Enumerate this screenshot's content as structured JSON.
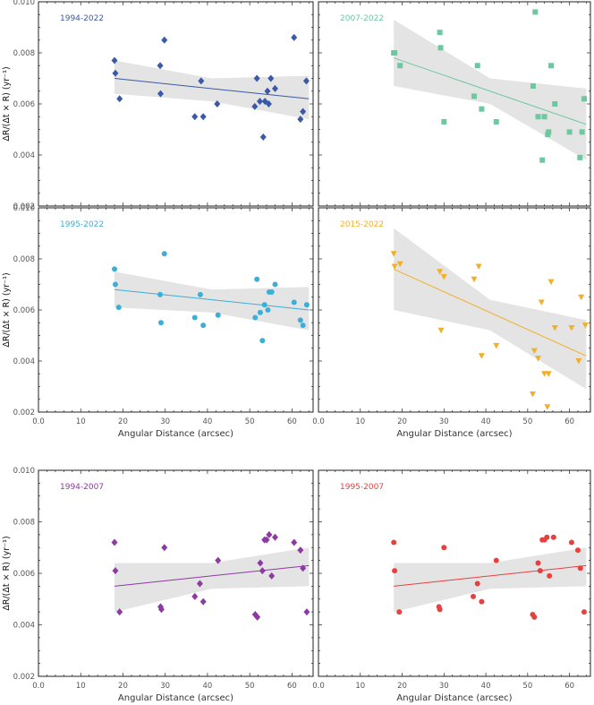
{
  "chart_data": [
    {
      "type": "scatter",
      "title": "1994-2022",
      "color": "#3a5aa5",
      "marker": "diamond",
      "xlabel": "",
      "ylabel": "ΔR/(Δt × R) (yr⁻¹)",
      "xlim": [
        0,
        65
      ],
      "ylim": [
        0.002,
        0.01
      ],
      "xticks": [
        "0.0",
        "10",
        "20",
        "30",
        "40",
        "50",
        "60"
      ],
      "yticks": [
        "0.002",
        "0.004",
        "0.006",
        "0.008",
        "0.010"
      ],
      "x": [
        18.0,
        18.2,
        19.2,
        28.8,
        29.8,
        28.9,
        37.0,
        38.5,
        39.0,
        42.3,
        51.2,
        51.7,
        52.4,
        53.2,
        53.6,
        54.2,
        54.5,
        55.0,
        56.0,
        60.5,
        62.0,
        62.6,
        63.4
      ],
      "y": [
        0.0077,
        0.0072,
        0.0062,
        0.0075,
        0.0085,
        0.0064,
        0.0055,
        0.0069,
        0.0055,
        0.006,
        0.0059,
        0.007,
        0.0061,
        0.0047,
        0.0061,
        0.0065,
        0.006,
        0.007,
        0.0066,
        0.0086,
        0.0054,
        0.0057,
        0.0069
      ],
      "fit": {
        "x": [
          18.0,
          64.0
        ],
        "y": [
          0.007,
          0.0062
        ]
      },
      "band": {
        "x": [
          18.0,
          41.0,
          64.0
        ],
        "upper": [
          0.0077,
          0.007,
          0.0071
        ],
        "lower": [
          0.0064,
          0.0061,
          0.0054
        ]
      }
    },
    {
      "type": "scatter",
      "title": "2007-2022",
      "color": "#6dc8a0",
      "marker": "square",
      "xlabel": "",
      "ylabel": "",
      "xlim": [
        0,
        65
      ],
      "ylim": [
        0.002,
        0.01
      ],
      "xticks": [
        "0.0",
        "10",
        "20",
        "30",
        "40",
        "50",
        "60"
      ],
      "yticks": [
        "0.002",
        "0.004",
        "0.006",
        "0.008",
        "0.010"
      ],
      "x": [
        18.0,
        18.2,
        19.5,
        29.0,
        29.2,
        30.0,
        37.2,
        38.0,
        39.0,
        42.5,
        51.3,
        51.8,
        52.5,
        53.5,
        54.0,
        54.8,
        55.0,
        55.6,
        56.5,
        60.0,
        62.5,
        63.0,
        63.5
      ],
      "y": [
        0.008,
        0.008,
        0.0075,
        0.0088,
        0.0082,
        0.0053,
        0.0063,
        0.0075,
        0.0058,
        0.0053,
        0.0067,
        0.0096,
        0.0055,
        0.0038,
        0.0055,
        0.0048,
        0.0049,
        0.0075,
        0.006,
        0.0049,
        0.0039,
        0.0049,
        0.0062
      ],
      "fit": {
        "x": [
          18.0,
          64.0
        ],
        "y": [
          0.0078,
          0.0052
        ]
      },
      "band": {
        "x": [
          18.0,
          41.0,
          64.0
        ],
        "upper": [
          0.0093,
          0.007,
          0.0066
        ],
        "lower": [
          0.0067,
          0.006,
          0.0038
        ]
      }
    },
    {
      "type": "scatter",
      "title": "1995-2022",
      "color": "#3aafd8",
      "marker": "circle",
      "xlabel": "Angular Distance (arcsec)",
      "ylabel": "ΔR/(Δt × R) (yr⁻¹)",
      "xlim": [
        0,
        65
      ],
      "ylim": [
        0.002,
        0.01
      ],
      "xticks": [
        "0.0",
        "10",
        "20",
        "30",
        "40",
        "50",
        "60"
      ],
      "yticks": [
        "0.002",
        "0.004",
        "0.006",
        "0.008",
        "0.010"
      ],
      "x": [
        18.0,
        18.2,
        19.0,
        28.8,
        29.0,
        29.8,
        37.0,
        38.3,
        39.0,
        42.5,
        51.3,
        51.7,
        52.5,
        53.0,
        53.5,
        54.3,
        54.6,
        55.2,
        56.0,
        60.5,
        62.0,
        62.6,
        63.5
      ],
      "y": [
        0.0076,
        0.007,
        0.0061,
        0.0066,
        0.0055,
        0.0082,
        0.0057,
        0.0066,
        0.0054,
        0.0058,
        0.0057,
        0.0072,
        0.0059,
        0.0048,
        0.0062,
        0.006,
        0.0067,
        0.0067,
        0.007,
        0.0063,
        0.0056,
        0.0054,
        0.0062
      ],
      "fit": {
        "x": [
          18.0,
          64.0
        ],
        "y": [
          0.0068,
          0.006
        ]
      },
      "band": {
        "x": [
          18.0,
          41.0,
          64.0
        ],
        "upper": [
          0.0075,
          0.0068,
          0.0069
        ],
        "lower": [
          0.0061,
          0.0059,
          0.0052
        ]
      }
    },
    {
      "type": "scatter",
      "title": "2015-2022",
      "color": "#f0b02a",
      "marker": "triangle-down",
      "xlabel": "Angular Distance (arcsec)",
      "ylabel": "",
      "xlim": [
        0,
        65
      ],
      "ylim": [
        0.002,
        0.01
      ],
      "xticks": [
        "0.0",
        "10",
        "20",
        "30",
        "40",
        "50",
        "60"
      ],
      "yticks": [
        "0.002",
        "0.004",
        "0.006",
        "0.008",
        "0.010"
      ],
      "x": [
        18.0,
        18.2,
        19.5,
        29.0,
        29.3,
        30.0,
        37.2,
        38.3,
        39.0,
        42.5,
        51.2,
        51.6,
        52.5,
        53.3,
        54.0,
        54.7,
        55.0,
        55.6,
        56.5,
        60.5,
        62.2,
        62.8,
        63.8
      ],
      "y": [
        0.0082,
        0.0077,
        0.0078,
        0.0075,
        0.0052,
        0.0073,
        0.0072,
        0.0077,
        0.0042,
        0.0046,
        0.0027,
        0.0044,
        0.0041,
        0.0063,
        0.0035,
        0.0022,
        0.0035,
        0.0071,
        0.0053,
        0.0053,
        0.004,
        0.0065,
        0.0054
      ],
      "fit": {
        "x": [
          18.0,
          64.0
        ],
        "y": [
          0.0076,
          0.0042
        ]
      },
      "band": {
        "x": [
          18.0,
          41.0,
          64.0
        ],
        "upper": [
          0.0092,
          0.0064,
          0.0056
        ],
        "lower": [
          0.006,
          0.0052,
          0.0029
        ]
      }
    },
    {
      "type": "scatter",
      "title": "1994-2007",
      "color": "#8e3aa5",
      "marker": "diamond",
      "xlabel": "Angular Distance (arcsec)",
      "ylabel": "ΔR/(Δt × R) (yr⁻¹)",
      "xlim": [
        0,
        65
      ],
      "ylim": [
        0.002,
        0.01
      ],
      "xticks": [
        "0.0",
        "10",
        "20",
        "30",
        "40",
        "50",
        "60"
      ],
      "yticks": [
        "0.002",
        "0.004",
        "0.006",
        "0.008",
        "0.010"
      ],
      "x": [
        18.0,
        18.2,
        19.2,
        28.9,
        29.1,
        29.8,
        37.0,
        38.2,
        39.0,
        42.5,
        51.3,
        51.8,
        52.5,
        53.0,
        53.5,
        54.0,
        54.6,
        55.2,
        56.0,
        60.5,
        62.0,
        62.6,
        63.5
      ],
      "y": [
        0.0072,
        0.0061,
        0.0045,
        0.0047,
        0.0046,
        0.007,
        0.0051,
        0.0056,
        0.0049,
        0.0065,
        0.0044,
        0.0043,
        0.0064,
        0.0061,
        0.0073,
        0.0073,
        0.0075,
        0.0059,
        0.0074,
        0.0072,
        0.0069,
        0.0062,
        0.0045
      ],
      "fit": {
        "x": [
          18.0,
          64.0
        ],
        "y": [
          0.0055,
          0.0063
        ]
      },
      "band": {
        "x": [
          18.0,
          41.0,
          64.0
        ],
        "upper": [
          0.0064,
          0.0064,
          0.007
        ],
        "lower": [
          0.0045,
          0.0054,
          0.0055
        ]
      }
    },
    {
      "type": "scatter",
      "title": "1995-2007",
      "color": "#e8403f",
      "marker": "circle",
      "xlabel": "Angular Distance (arcsec)",
      "ylabel": "",
      "xlim": [
        0,
        65
      ],
      "ylim": [
        0.002,
        0.01
      ],
      "xticks": [
        "0.0",
        "10",
        "20",
        "30",
        "40",
        "50",
        "60"
      ],
      "yticks": [
        "0.002",
        "0.004",
        "0.006",
        "0.008",
        "0.010"
      ],
      "x": [
        18.0,
        18.2,
        19.3,
        28.8,
        29.0,
        30.0,
        37.0,
        38.0,
        39.0,
        42.5,
        51.2,
        51.6,
        52.5,
        53.0,
        53.5,
        54.0,
        54.6,
        55.2,
        56.2,
        60.5,
        62.0,
        62.6,
        63.5
      ],
      "y": [
        0.0072,
        0.0061,
        0.0045,
        0.0047,
        0.0046,
        0.007,
        0.0051,
        0.0056,
        0.0049,
        0.0065,
        0.0044,
        0.0043,
        0.0064,
        0.0061,
        0.0073,
        0.0073,
        0.0074,
        0.0059,
        0.0074,
        0.0072,
        0.0069,
        0.0062,
        0.0045
      ],
      "fit": {
        "x": [
          18.0,
          64.0
        ],
        "y": [
          0.0055,
          0.0063
        ]
      },
      "band": {
        "x": [
          18.0,
          41.0,
          64.0
        ],
        "upper": [
          0.0064,
          0.0064,
          0.007
        ],
        "lower": [
          0.0045,
          0.0054,
          0.0055
        ]
      }
    }
  ]
}
